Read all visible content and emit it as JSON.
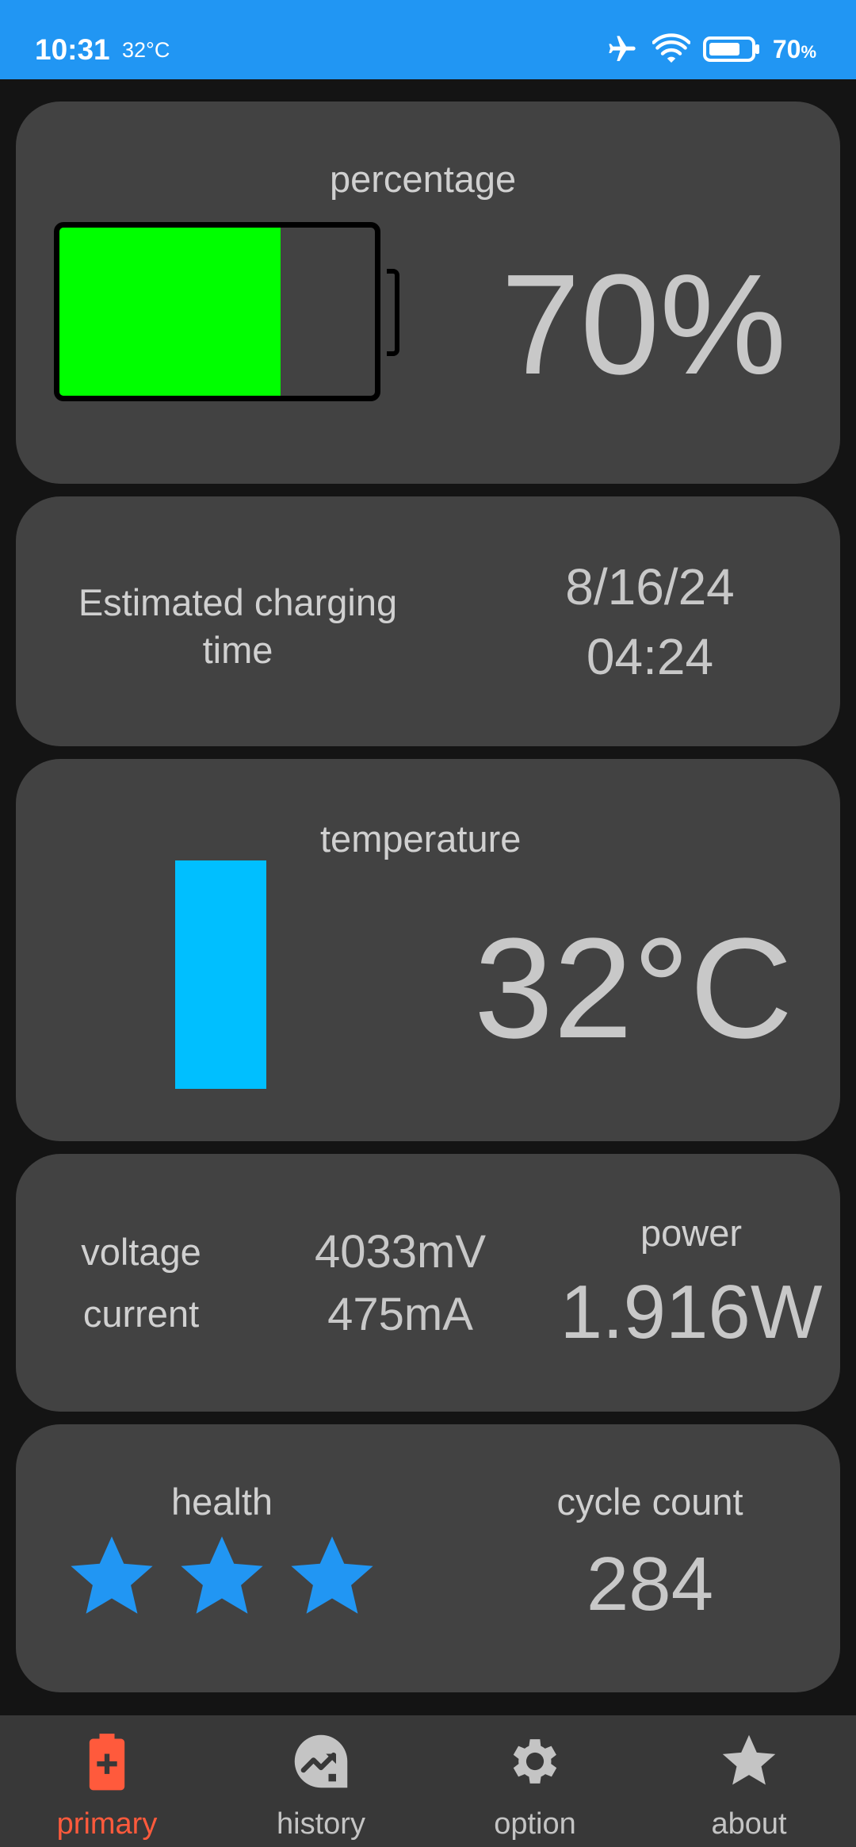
{
  "status_bar": {
    "time": "10:31",
    "temperature": "32°C",
    "battery_percent": "70",
    "battery_unit": "%",
    "icons": [
      "airplane-mode-icon",
      "wifi-icon",
      "battery-icon"
    ]
  },
  "percentage_card": {
    "label": "percentage",
    "value": "70%",
    "battery_level": 0.7,
    "fill_color": "#00ff00"
  },
  "charging_card": {
    "label": "Estimated charging time",
    "date": "8/16/24",
    "time": "04:24"
  },
  "temperature_card": {
    "label": "temperature",
    "value": "32°C",
    "bar_level": 1.0,
    "bar_color": "#00bfff"
  },
  "electric_card": {
    "voltage_label": "voltage",
    "current_label": "current",
    "voltage_value": "4033mV",
    "current_value": "475mA",
    "power_label": "power",
    "power_value": "1.916W"
  },
  "health_card": {
    "health_label": "health",
    "health_stars": 3,
    "star_color": "#2196f3",
    "cycle_label": "cycle count",
    "cycle_value": "284"
  },
  "bottom_nav": {
    "active_color": "#ff5a3c",
    "items": [
      {
        "label": "primary",
        "icon": "battery-plus-icon",
        "active": true
      },
      {
        "label": "history",
        "icon": "chart-trend-icon",
        "active": false
      },
      {
        "label": "option",
        "icon": "gear-icon",
        "active": false
      },
      {
        "label": "about",
        "icon": "star-icon",
        "active": false
      }
    ]
  }
}
